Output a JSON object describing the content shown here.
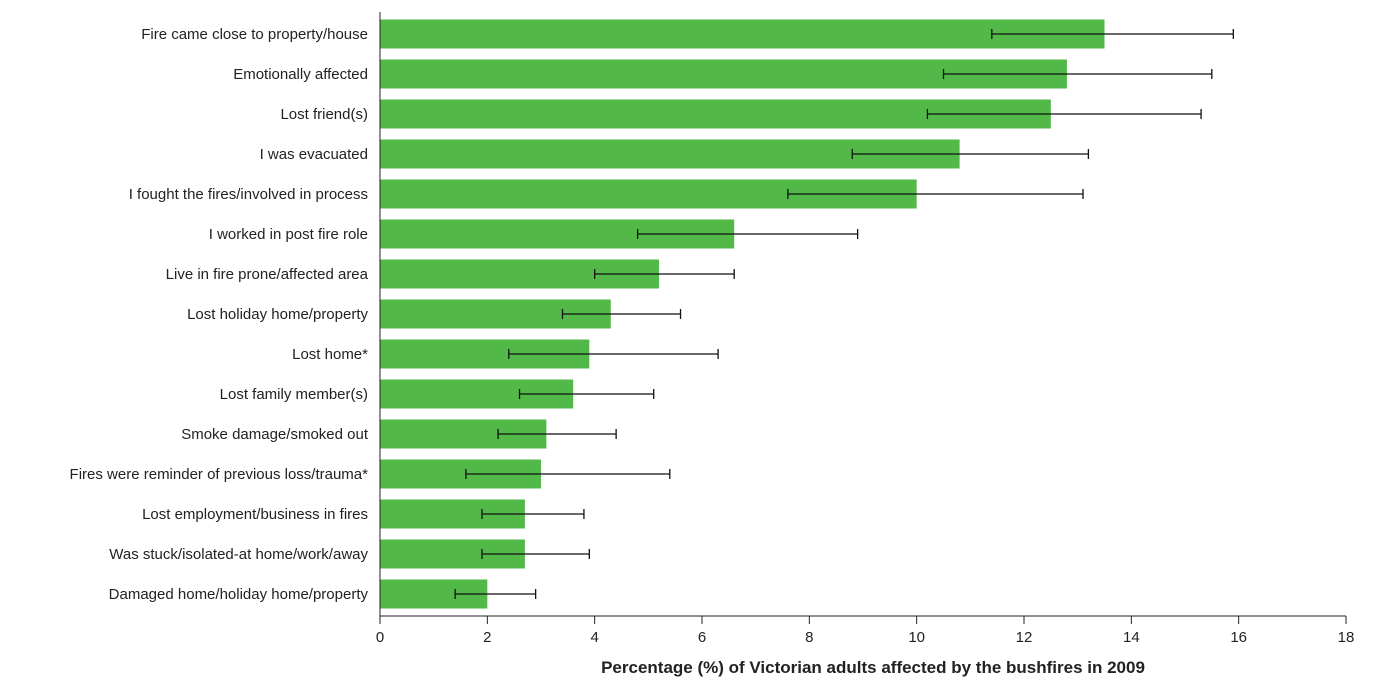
{
  "chart_data": {
    "type": "bar",
    "orientation": "horizontal",
    "title": "",
    "xlabel": "Percentage (%) of Victorian adults affected by the bushfires in 2009",
    "ylabel": "",
    "xlim": [
      0,
      18
    ],
    "x_ticks": [
      0,
      2,
      4,
      6,
      8,
      10,
      12,
      14,
      16,
      18
    ],
    "grid": false,
    "bar_color": "#52b848",
    "error_bar_color": "#111111",
    "categories": [
      "Fire came close to property/house",
      "Emotionally affected",
      "Lost friend(s)",
      "I was evacuated",
      "I fought the fires/involved in process",
      "I worked in post fire role",
      "Live in fire prone/affected area",
      "Lost holiday home/property",
      "Lost home*",
      "Lost family member(s)",
      "Smoke damage/smoked out",
      "Fires were reminder of previous loss/trauma*",
      "Lost employment/business in fires",
      "Was stuck/isolated-at home/work/away",
      "Damaged home/holiday home/property"
    ],
    "values": [
      13.5,
      12.8,
      12.5,
      10.8,
      10.0,
      6.6,
      5.2,
      4.3,
      3.9,
      3.6,
      3.1,
      3.0,
      2.7,
      2.7,
      2.0
    ],
    "error_low": [
      11.4,
      10.5,
      10.2,
      8.8,
      7.6,
      4.8,
      4.0,
      3.4,
      2.4,
      2.6,
      2.2,
      1.6,
      1.9,
      1.9,
      1.4
    ],
    "error_high": [
      15.9,
      15.5,
      15.3,
      13.2,
      13.1,
      8.9,
      6.6,
      5.6,
      6.3,
      5.1,
      4.4,
      5.4,
      3.8,
      3.9,
      2.9
    ]
  }
}
